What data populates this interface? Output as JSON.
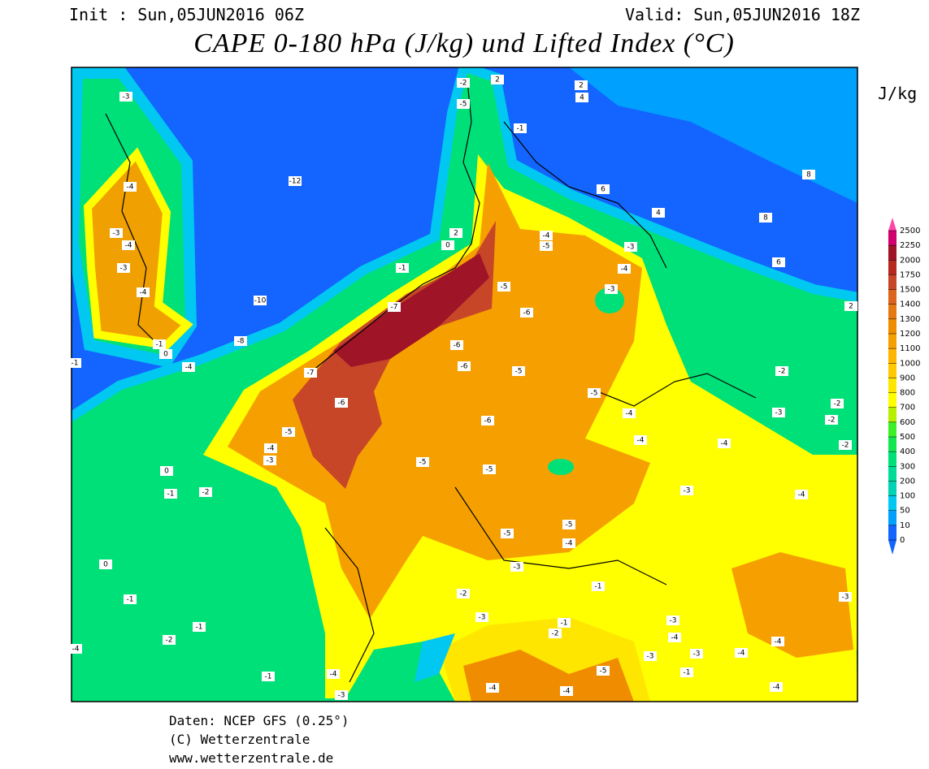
{
  "header": {
    "init": "Init : Sun,05JUN2016 06Z",
    "valid": "Valid: Sun,05JUN2016 18Z",
    "title": "CAPE 0-180 hPa (J/kg) und Lifted Index (°C)"
  },
  "colorbar": {
    "unit": "J/kg",
    "levels": [
      0,
      10,
      50,
      100,
      200,
      300,
      400,
      500,
      600,
      700,
      800,
      900,
      1000,
      1100,
      1200,
      1300,
      1400,
      1500,
      1750,
      2000,
      2250,
      2500
    ],
    "colors": [
      "#1464ff",
      "#00a0ff",
      "#00c8f0",
      "#00d2b4",
      "#00dc96",
      "#00e078",
      "#14e650",
      "#3cf028",
      "#b4f000",
      "#ffff00",
      "#ffe600",
      "#ffc800",
      "#ffb400",
      "#f5a000",
      "#f08c00",
      "#e67814",
      "#dc641e",
      "#c84628",
      "#b4281e",
      "#a01428",
      "#d2006e"
    ],
    "over_color": "#ff46aa",
    "under_color": "#1464ff"
  },
  "map": {
    "lifted_index_labels": [
      -3,
      -4,
      -3,
      -4,
      -3,
      -4,
      -1,
      0,
      -4,
      -12,
      -10,
      -8,
      -2,
      -5,
      2,
      2,
      4,
      -1,
      6,
      4,
      8,
      6,
      8,
      2,
      0,
      2,
      -1,
      -7,
      -4,
      -5,
      -3,
      -4,
      -3,
      -5,
      -6,
      -6,
      -6,
      -5,
      -7,
      -6,
      -5,
      -4,
      -3,
      -6,
      -5,
      -5,
      -5,
      -4,
      -4,
      -4,
      -2,
      -3,
      -2,
      -2,
      -2,
      -3,
      -4,
      -5,
      -5,
      -4,
      -3,
      -1,
      -2,
      -3,
      -1,
      -2,
      -3,
      -4,
      -3,
      -3,
      -4,
      -4,
      -3,
      -4,
      -1,
      -5,
      -4,
      -4,
      -4,
      -3,
      -1,
      -2,
      -1,
      -1,
      0,
      -1,
      -2,
      0,
      -1,
      -4
    ]
  },
  "footer": {
    "line1": "Daten: NCEP GFS (0.25°)",
    "line2": "(C) Wetterzentrale",
    "line3": "www.wetterzentrale.de"
  }
}
